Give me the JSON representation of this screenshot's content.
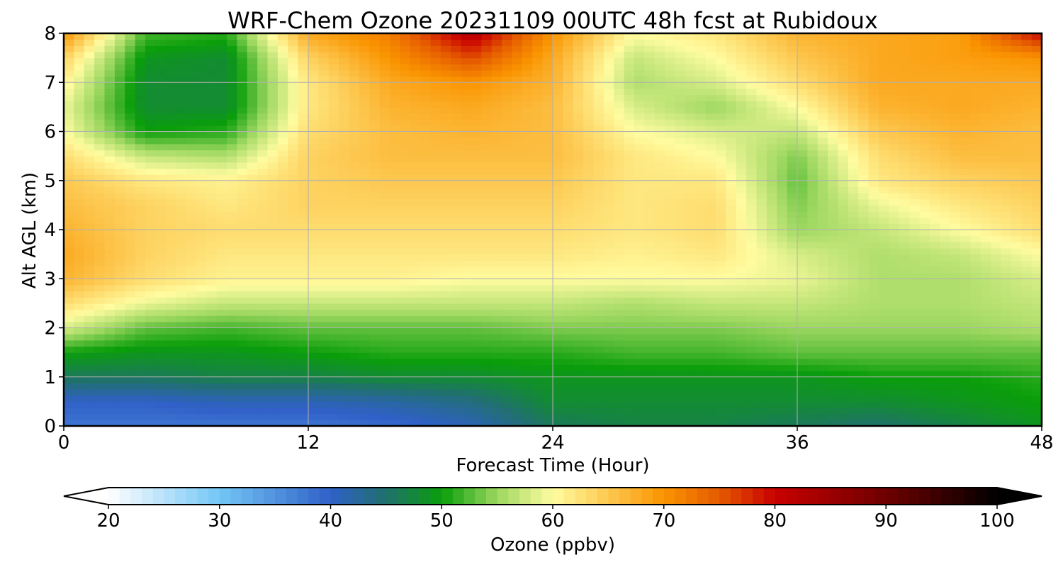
{
  "chart_data": {
    "type": "heatmap",
    "title": "WRF-Chem Ozone  20231109 00UTC 48h fcst at Rubidoux",
    "xlabel": "Forecast Time (Hour)",
    "ylabel": "Alt AGL (km)",
    "xlim": [
      0,
      48
    ],
    "ylim": [
      0,
      8
    ],
    "x_ticks": [
      0,
      12,
      24,
      36,
      48
    ],
    "y_ticks": [
      0,
      1,
      2,
      3,
      4,
      5,
      6,
      7,
      8
    ],
    "grid": true,
    "x": [
      0,
      4,
      8,
      12,
      16,
      20,
      24,
      28,
      32,
      36,
      40,
      44,
      48
    ],
    "y": [
      0,
      0.5,
      1,
      1.5,
      2,
      2.5,
      3,
      3.5,
      4,
      4.5,
      5,
      5.5,
      6,
      6.5,
      7,
      7.5,
      8
    ],
    "z": [
      [
        38,
        38,
        38,
        38,
        39,
        41,
        46,
        47,
        47,
        46,
        45,
        47,
        49
      ],
      [
        40,
        40,
        41,
        41,
        42,
        44,
        48,
        48,
        48,
        48,
        48,
        49,
        50
      ],
      [
        46,
        46,
        47,
        47,
        48,
        48,
        49,
        49,
        49,
        49,
        50,
        50,
        51
      ],
      [
        50,
        49,
        49,
        50,
        51,
        51,
        51,
        52,
        52,
        53,
        53,
        53,
        53
      ],
      [
        58,
        53,
        52,
        53,
        53,
        53,
        54,
        54,
        54,
        55,
        55,
        55,
        56
      ],
      [
        63,
        59,
        57,
        57,
        57,
        57,
        57,
        56,
        57,
        57,
        56,
        56,
        57
      ],
      [
        67,
        63,
        61,
        61,
        61,
        60,
        60,
        60,
        60,
        59,
        56,
        56,
        58
      ],
      [
        68,
        64,
        62,
        62,
        62,
        62,
        62,
        61,
        62,
        58,
        56,
        57,
        60
      ],
      [
        67,
        64,
        63,
        63,
        63,
        63,
        63,
        62,
        63,
        55,
        57,
        60,
        63
      ],
      [
        66,
        64,
        62,
        64,
        64,
        64,
        64,
        62,
        63,
        54,
        59,
        62,
        64
      ],
      [
        65,
        62,
        61,
        64,
        65,
        65,
        65,
        62,
        62,
        53,
        62,
        64,
        65
      ],
      [
        63,
        57,
        56,
        64,
        66,
        66,
        66,
        62,
        60,
        54,
        63,
        66,
        66
      ],
      [
        60,
        50,
        51,
        63,
        66,
        67,
        66,
        60,
        58,
        57,
        65,
        67,
        66
      ],
      [
        59,
        48,
        48,
        62,
        67,
        68,
        66,
        58,
        55,
        60,
        67,
        68,
        67
      ],
      [
        61,
        48,
        48,
        62,
        68,
        70,
        67,
        56,
        58,
        63,
        68,
        68,
        68
      ],
      [
        64,
        49,
        48,
        64,
        70,
        76,
        68,
        57,
        60,
        65,
        68,
        69,
        70
      ],
      [
        70,
        52,
        51,
        68,
        72,
        82,
        70,
        60,
        62,
        67,
        68,
        69,
        80
      ]
    ],
    "colorbar": {
      "label": "Ozone  (ppbv)",
      "vmin": 20,
      "vmax": 100,
      "ticks": [
        20,
        30,
        40,
        50,
        60,
        70,
        80,
        90,
        100
      ],
      "extend": "both",
      "orientation": "horizontal",
      "stops": [
        {
          "v": 20,
          "c": "#ffffff"
        },
        {
          "v": 30,
          "c": "#73c6f5"
        },
        {
          "v": 40,
          "c": "#3060c8"
        },
        {
          "v": 45,
          "c": "#20706e"
        },
        {
          "v": 50,
          "c": "#0a9e0a"
        },
        {
          "v": 55,
          "c": "#9cd760"
        },
        {
          "v": 60,
          "c": "#fffca0"
        },
        {
          "v": 65,
          "c": "#fdc850"
        },
        {
          "v": 70,
          "c": "#fa9400"
        },
        {
          "v": 75,
          "c": "#e55a00"
        },
        {
          "v": 80,
          "c": "#c80000"
        },
        {
          "v": 90,
          "c": "#6e0000"
        },
        {
          "v": 100,
          "c": "#000000"
        }
      ]
    }
  }
}
